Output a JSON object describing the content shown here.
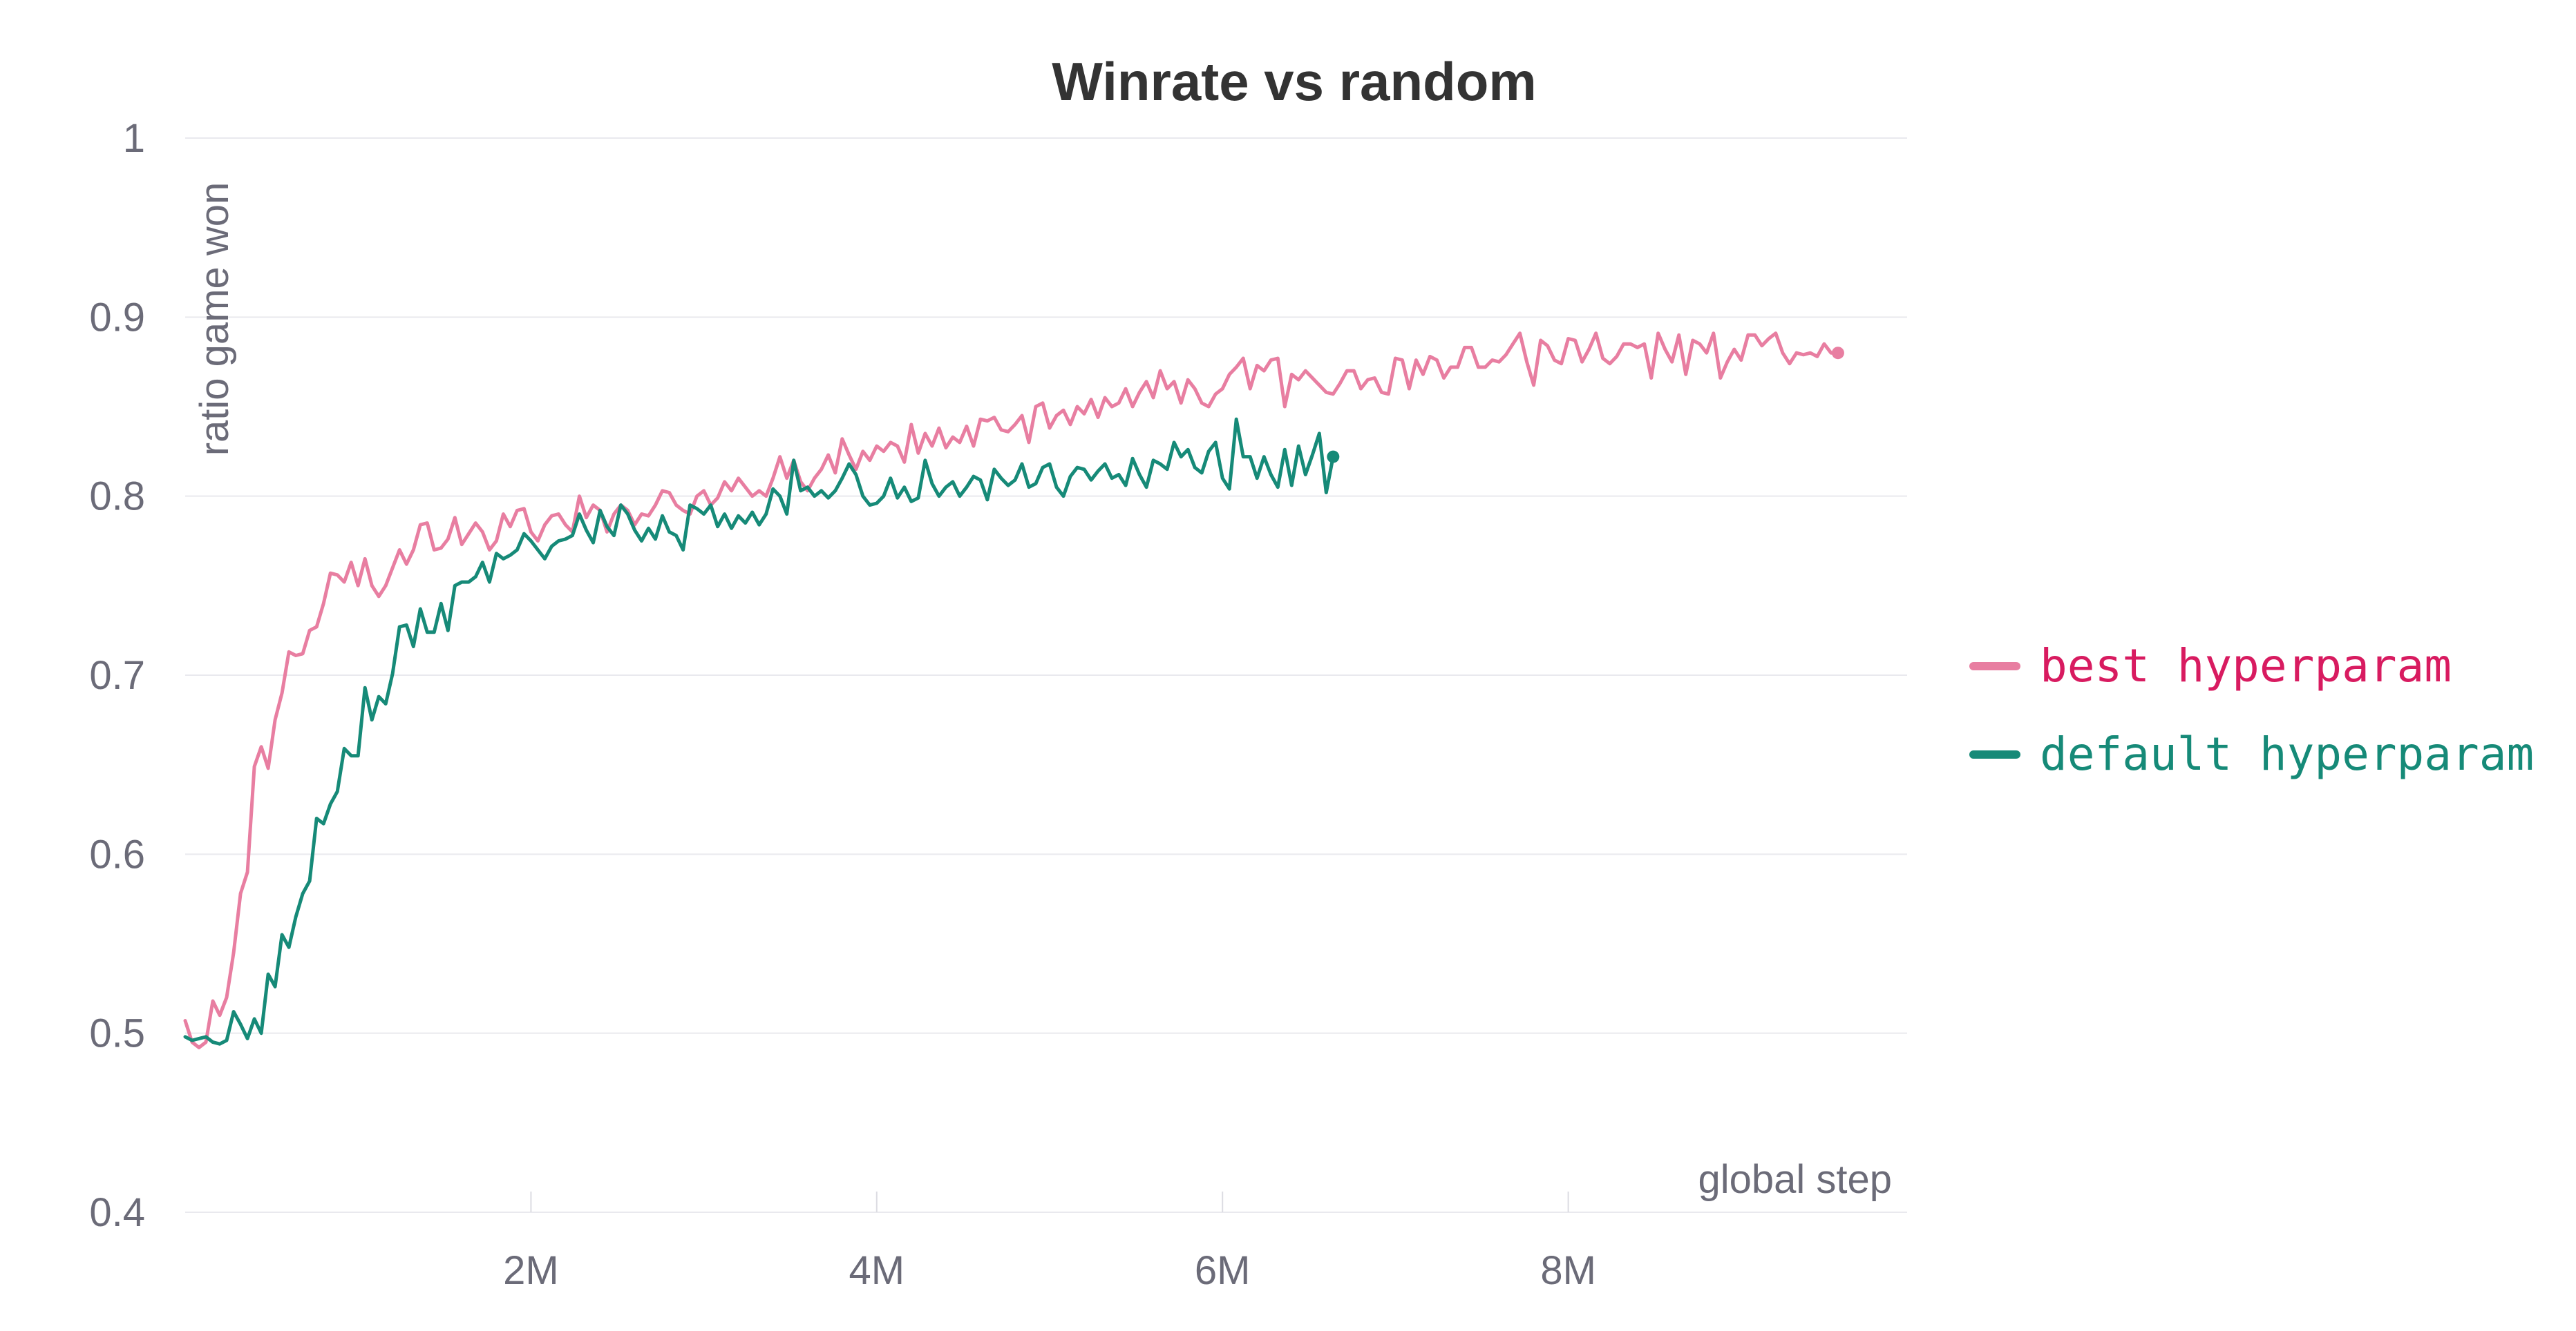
{
  "chart_data": {
    "type": "line",
    "title": "Winrate vs random",
    "xlabel": "global step",
    "ylabel": "ratio game won",
    "xlim": [
      0,
      9960000
    ],
    "ylim": [
      0.4,
      1.0
    ],
    "xticks": [
      2000000,
      4000000,
      6000000,
      8000000
    ],
    "xtick_labels": [
      "2M",
      "4M",
      "6M",
      "8M"
    ],
    "yticks": [
      0.4,
      0.5,
      0.6,
      0.7,
      0.8,
      0.9,
      1.0
    ],
    "ytick_labels": [
      "0.4",
      "0.5",
      "0.6",
      "0.7",
      "0.8",
      "0.9",
      "1"
    ],
    "grid": true,
    "legend_position": "right",
    "series": [
      {
        "name": "best hyperparam",
        "color": "#e87ea1",
        "label_color": "#d81b60",
        "x_start": 0,
        "x_step": 40000,
        "values": [
          0.507,
          0.495,
          0.492,
          0.495,
          0.518,
          0.51,
          0.52,
          0.545,
          0.578,
          0.59,
          0.649,
          0.66,
          0.648,
          0.675,
          0.69,
          0.713,
          0.711,
          0.712,
          0.725,
          0.727,
          0.74,
          0.757,
          0.756,
          0.752,
          0.763,
          0.75,
          0.765,
          0.75,
          0.744,
          0.75,
          0.76,
          0.77,
          0.762,
          0.77,
          0.784,
          0.785,
          0.77,
          0.771,
          0.776,
          0.788,
          0.773,
          0.779,
          0.785,
          0.78,
          0.77,
          0.775,
          0.79,
          0.783,
          0.792,
          0.793,
          0.78,
          0.775,
          0.784,
          0.789,
          0.79,
          0.784,
          0.78,
          0.8,
          0.788,
          0.795,
          0.792,
          0.78,
          0.79,
          0.795,
          0.792,
          0.784,
          0.79,
          0.789,
          0.795,
          0.803,
          0.802,
          0.795,
          0.792,
          0.79,
          0.8,
          0.803,
          0.795,
          0.799,
          0.808,
          0.803,
          0.81,
          0.805,
          0.8,
          0.803,
          0.8,
          0.81,
          0.822,
          0.81,
          0.82,
          0.808,
          0.803,
          0.81,
          0.815,
          0.823,
          0.813,
          0.832,
          0.823,
          0.815,
          0.825,
          0.82,
          0.828,
          0.825,
          0.83,
          0.828,
          0.819,
          0.84,
          0.824,
          0.835,
          0.828,
          0.838,
          0.827,
          0.833,
          0.83,
          0.839,
          0.828,
          0.843,
          0.842,
          0.844,
          0.837,
          0.836,
          0.84,
          0.845,
          0.83,
          0.85,
          0.852,
          0.838,
          0.845,
          0.848,
          0.84,
          0.85,
          0.846,
          0.854,
          0.844,
          0.855,
          0.85,
          0.852,
          0.86,
          0.85,
          0.858,
          0.864,
          0.855,
          0.87,
          0.86,
          0.864,
          0.852,
          0.865,
          0.86,
          0.852,
          0.85,
          0.857,
          0.86,
          0.868,
          0.872,
          0.877,
          0.86,
          0.873,
          0.87,
          0.876,
          0.877,
          0.85,
          0.868,
          0.865,
          0.87,
          0.866,
          0.862,
          0.858,
          0.857,
          0.863,
          0.87,
          0.87,
          0.86,
          0.865,
          0.866,
          0.858,
          0.857,
          0.877,
          0.876,
          0.86,
          0.876,
          0.868,
          0.878,
          0.876,
          0.866,
          0.872,
          0.872,
          0.883,
          0.883,
          0.872,
          0.872,
          0.876,
          0.875,
          0.879,
          0.885,
          0.891,
          0.875,
          0.862,
          0.887,
          0.884,
          0.876,
          0.874,
          0.888,
          0.887,
          0.875,
          0.882,
          0.891,
          0.877,
          0.874,
          0.878,
          0.885,
          0.885,
          0.883,
          0.885,
          0.866,
          0.891,
          0.882,
          0.875,
          0.89,
          0.868,
          0.887,
          0.885,
          0.88,
          0.891,
          0.866,
          0.875,
          0.882,
          0.876,
          0.89,
          0.89,
          0.884,
          0.888,
          0.891,
          0.88,
          0.874,
          0.88,
          0.879,
          0.88,
          0.878,
          0.885,
          0.88,
          0.88
        ],
        "end_marker": true
      },
      {
        "name": "default hyperparam",
        "color": "#168a78",
        "label_color": "#168a78",
        "x_start": 0,
        "x_step": 40000,
        "values": [
          0.498,
          0.496,
          0.497,
          0.498,
          0.495,
          0.494,
          0.496,
          0.512,
          0.505,
          0.497,
          0.508,
          0.5,
          0.533,
          0.526,
          0.555,
          0.548,
          0.565,
          0.578,
          0.585,
          0.62,
          0.617,
          0.628,
          0.635,
          0.659,
          0.655,
          0.655,
          0.693,
          0.675,
          0.688,
          0.684,
          0.701,
          0.727,
          0.728,
          0.716,
          0.737,
          0.724,
          0.724,
          0.74,
          0.725,
          0.75,
          0.752,
          0.752,
          0.755,
          0.763,
          0.752,
          0.768,
          0.765,
          0.767,
          0.77,
          0.779,
          0.775,
          0.77,
          0.765,
          0.772,
          0.775,
          0.776,
          0.778,
          0.79,
          0.781,
          0.774,
          0.792,
          0.783,
          0.778,
          0.795,
          0.79,
          0.781,
          0.775,
          0.782,
          0.776,
          0.789,
          0.78,
          0.778,
          0.77,
          0.795,
          0.793,
          0.79,
          0.795,
          0.783,
          0.79,
          0.782,
          0.789,
          0.785,
          0.791,
          0.784,
          0.79,
          0.804,
          0.8,
          0.79,
          0.82,
          0.803,
          0.805,
          0.8,
          0.803,
          0.799,
          0.803,
          0.81,
          0.818,
          0.812,
          0.8,
          0.795,
          0.796,
          0.8,
          0.81,
          0.799,
          0.805,
          0.797,
          0.799,
          0.82,
          0.807,
          0.8,
          0.805,
          0.808,
          0.8,
          0.805,
          0.811,
          0.809,
          0.798,
          0.815,
          0.81,
          0.806,
          0.809,
          0.818,
          0.805,
          0.807,
          0.816,
          0.818,
          0.805,
          0.8,
          0.811,
          0.816,
          0.815,
          0.809,
          0.814,
          0.818,
          0.81,
          0.812,
          0.806,
          0.821,
          0.812,
          0.805,
          0.82,
          0.818,
          0.815,
          0.83,
          0.822,
          0.826,
          0.816,
          0.813,
          0.825,
          0.83,
          0.81,
          0.804,
          0.843,
          0.822,
          0.822,
          0.81,
          0.822,
          0.812,
          0.805,
          0.826,
          0.806,
          0.828,
          0.812,
          0.823,
          0.835,
          0.802,
          0.822
        ],
        "end_marker": true
      }
    ]
  }
}
